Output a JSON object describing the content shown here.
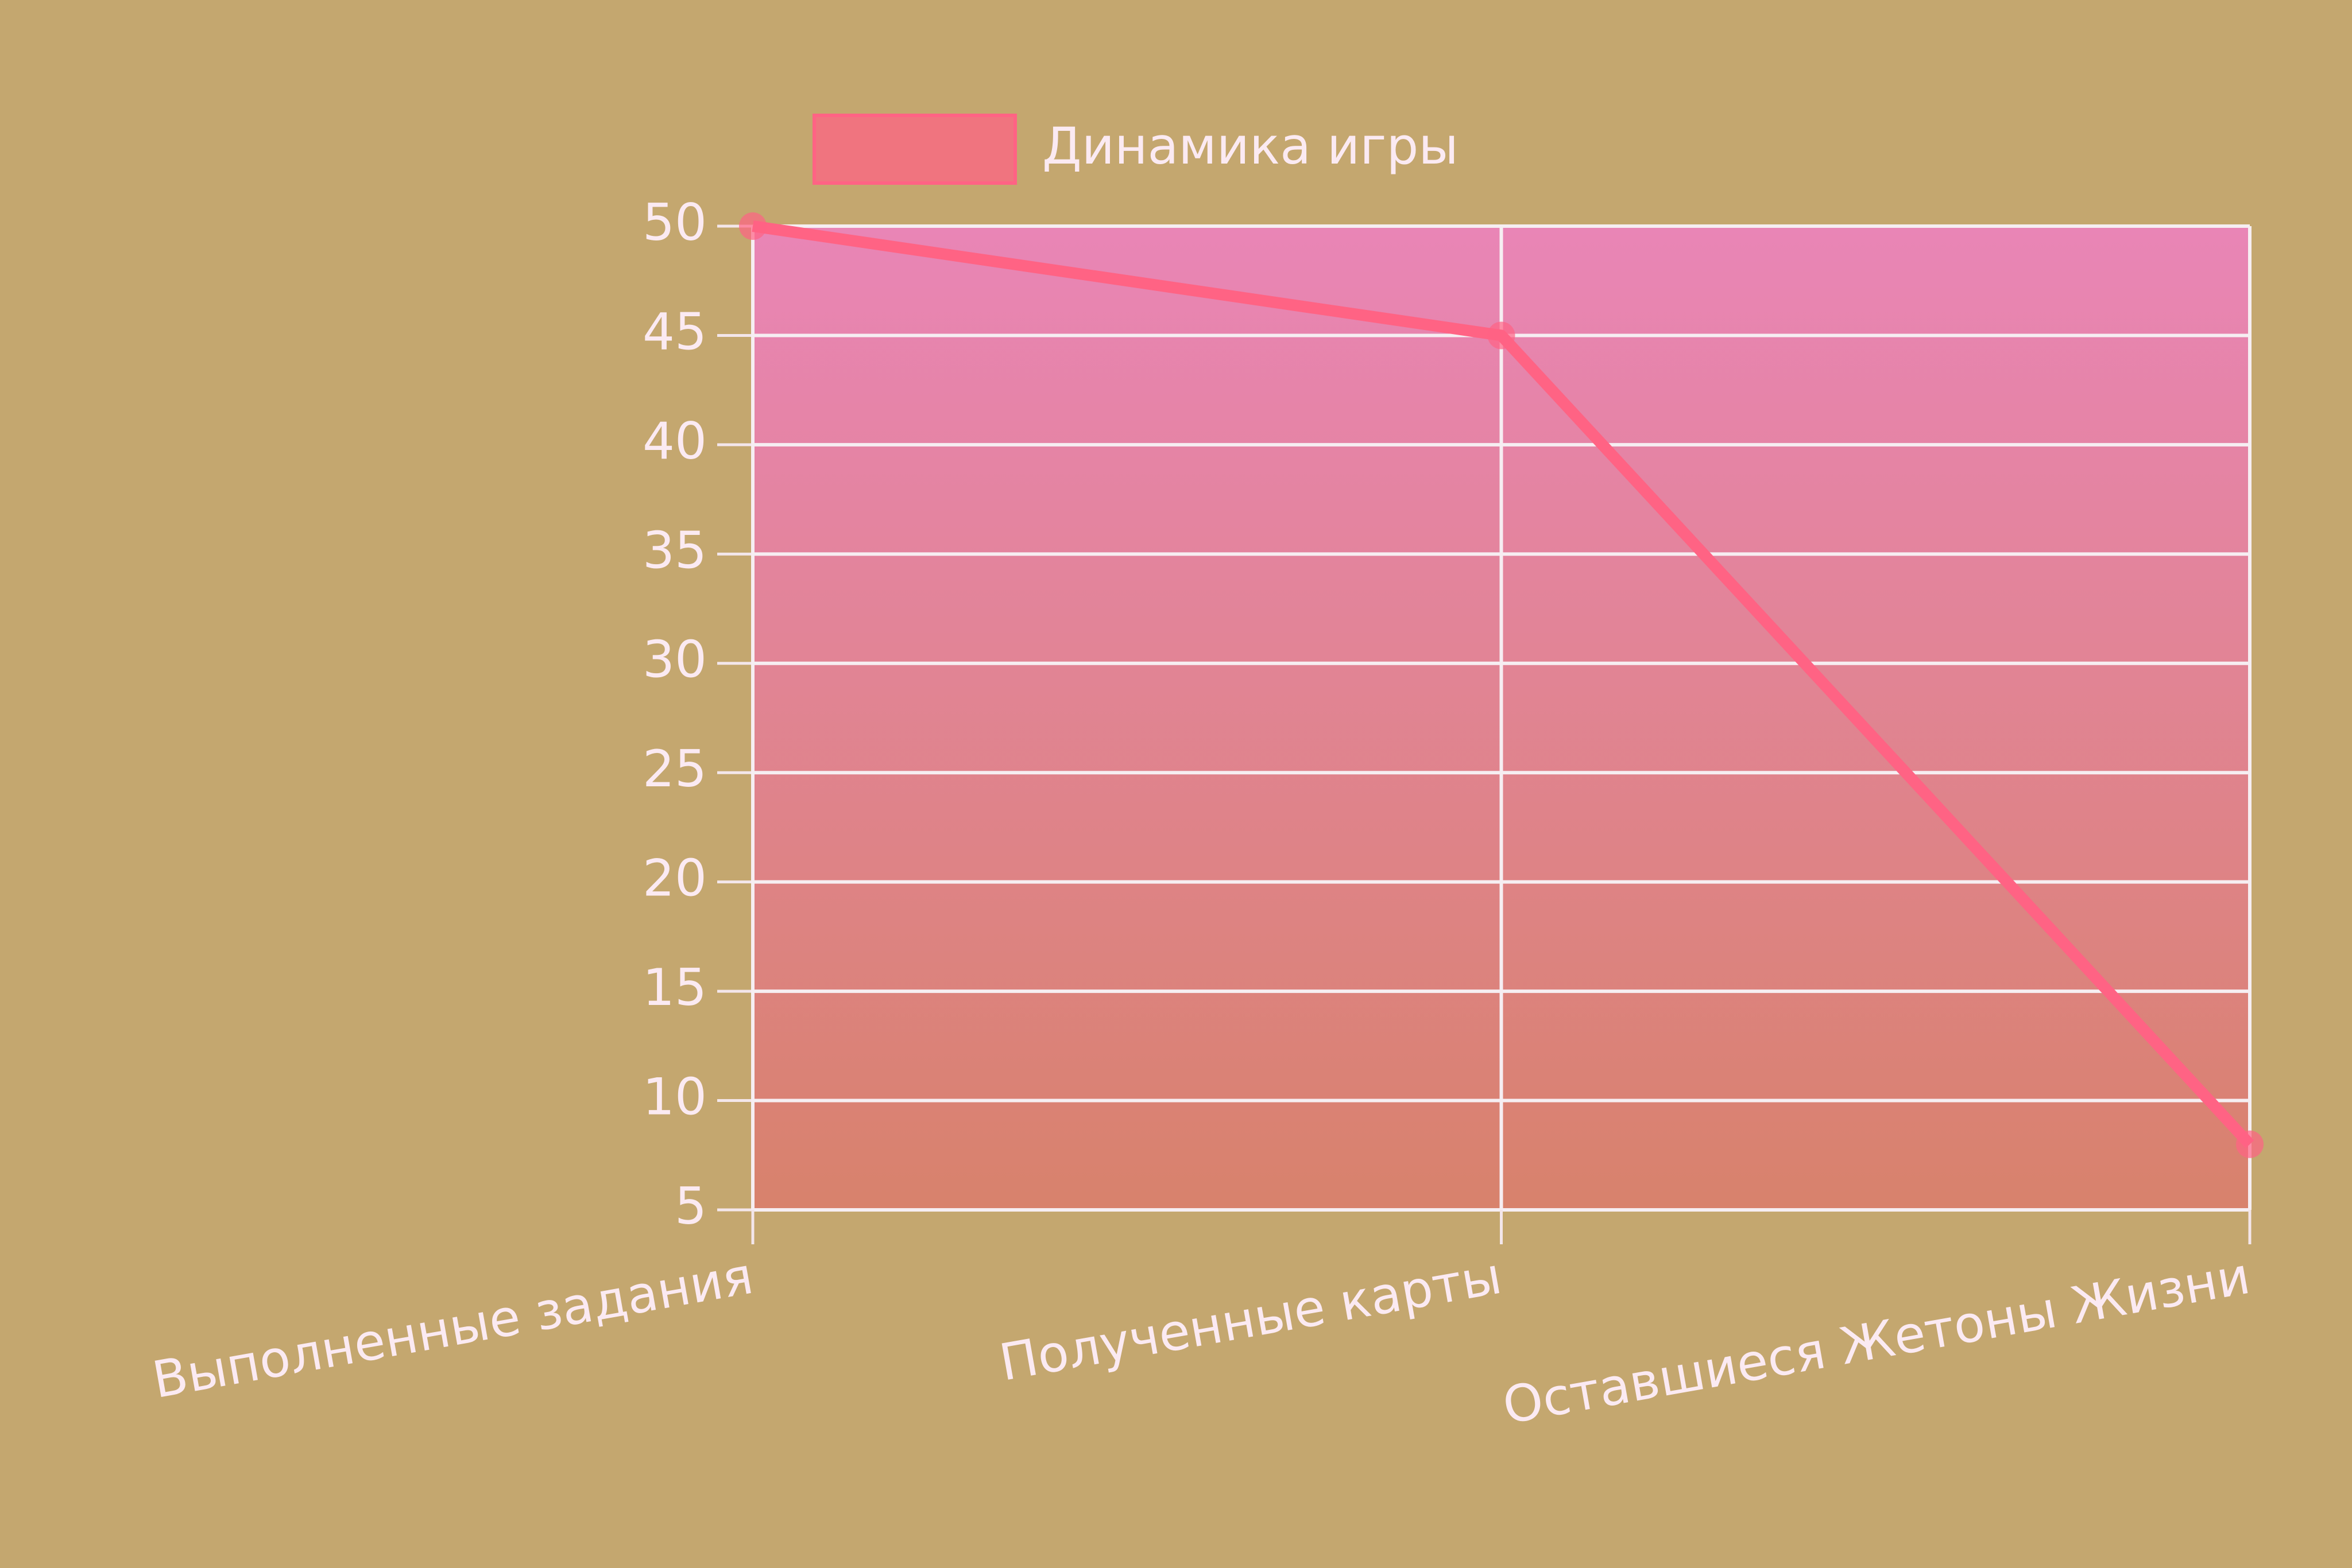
{
  "chart_data": {
    "type": "line",
    "categories": [
      "Выполненные задания",
      "Полученные карты",
      "Оставшиеся Жетоны Жизни"
    ],
    "series": [
      {
        "name": "Динамика игры",
        "color": "#ff6384",
        "values": [
          50,
          45,
          8
        ]
      }
    ],
    "ylim": [
      5,
      50
    ],
    "yticks": [
      5,
      10,
      15,
      20,
      25,
      30,
      35,
      40,
      45,
      50
    ],
    "grid": true,
    "legend": "top"
  }
}
